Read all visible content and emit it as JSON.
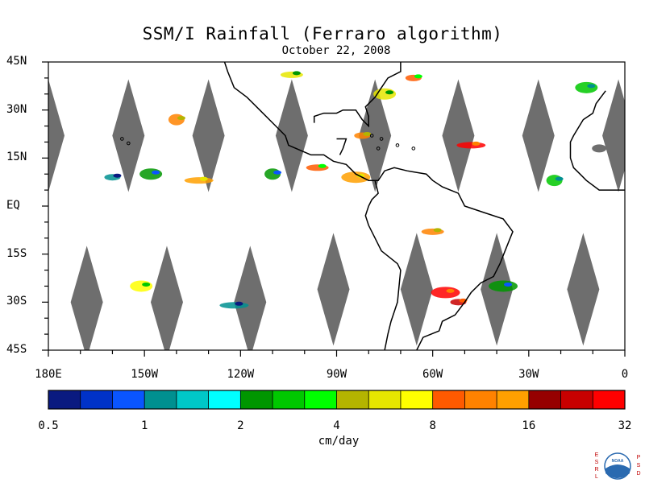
{
  "title": "SSM/I Rainfall (Ferraro algorithm)",
  "subtitle": "October 22, 2008",
  "map": {
    "lat_labels": [
      "45N",
      "30N",
      "15N",
      "EQ",
      "15S",
      "30S",
      "45S"
    ],
    "lat_values": [
      45,
      30,
      15,
      0,
      -15,
      -30,
      -45
    ],
    "lon_labels": [
      "180E",
      "150W",
      "120W",
      "90W",
      "60W",
      "30W",
      "0"
    ],
    "lon_values": [
      -180,
      -150,
      -120,
      -90,
      -60,
      -30,
      0
    ],
    "no_data_color": "#6e6e6e",
    "coast_color": "#000000",
    "swath_gaps": [
      {
        "lon": -180,
        "lat": 22
      },
      {
        "lon": -155,
        "lat": 22
      },
      {
        "lon": -130,
        "lat": 22
      },
      {
        "lon": -104,
        "lat": 22
      },
      {
        "lon": -78,
        "lat": 22
      },
      {
        "lon": -52,
        "lat": 22
      },
      {
        "lon": -27,
        "lat": 22
      },
      {
        "lon": -2,
        "lat": 22
      },
      {
        "lon": -168,
        "lat": -30
      },
      {
        "lon": -143,
        "lat": -30
      },
      {
        "lon": -117,
        "lat": -30
      },
      {
        "lon": -91,
        "lat": -26
      },
      {
        "lon": -65,
        "lat": -26
      },
      {
        "lon": -40,
        "lat": -26
      },
      {
        "lon": -13,
        "lat": -26
      }
    ],
    "rain_areas": [
      {
        "lon": -160,
        "lat": 9,
        "level": 3
      },
      {
        "lon": -148,
        "lat": 10,
        "level": 6
      },
      {
        "lon": -133,
        "lat": 8,
        "level": 14
      },
      {
        "lon": -110,
        "lat": 10,
        "level": 6
      },
      {
        "lon": -96,
        "lat": 12,
        "level": 12
      },
      {
        "lon": -84,
        "lat": 9,
        "level": 14
      },
      {
        "lon": -82,
        "lat": 22,
        "level": 13
      },
      {
        "lon": -75,
        "lat": 35,
        "level": 10
      },
      {
        "lon": -48,
        "lat": 19,
        "level": 17
      },
      {
        "lon": -22,
        "lat": 8,
        "level": 7
      },
      {
        "lon": -60,
        "lat": -8,
        "level": 13
      },
      {
        "lon": -56,
        "lat": -27,
        "level": 17
      },
      {
        "lon": -52,
        "lat": -30,
        "level": 16
      },
      {
        "lon": -151,
        "lat": -25,
        "level": 11
      },
      {
        "lon": -122,
        "lat": -31,
        "level": 3
      },
      {
        "lon": -140,
        "lat": 27,
        "level": 13
      },
      {
        "lon": -104,
        "lat": 41,
        "level": 10
      },
      {
        "lon": -38,
        "lat": -25,
        "level": 6
      },
      {
        "lon": -66,
        "lat": 40,
        "level": 12
      },
      {
        "lon": -12,
        "lat": 37,
        "level": 7
      }
    ]
  },
  "colorbar": {
    "colors": [
      "#0a1a80",
      "#0032c8",
      "#0a55ff",
      "#009090",
      "#00c8c8",
      "#00ffff",
      "#009600",
      "#00c800",
      "#00ff00",
      "#b4b400",
      "#e6e600",
      "#ffff00",
      "#ff5a00",
      "#ff8200",
      "#ffa000",
      "#960000",
      "#c80000",
      "#ff0000"
    ],
    "tick_labels": [
      "0.5",
      "1",
      "2",
      "4",
      "8",
      "16",
      "32"
    ],
    "units": "cm/day"
  },
  "logo": {
    "left_letters": "ESRL",
    "right_letters": "PSD",
    "center_text": "NOAA",
    "color": "#c00000",
    "globe_color": "#2a6ab0"
  }
}
